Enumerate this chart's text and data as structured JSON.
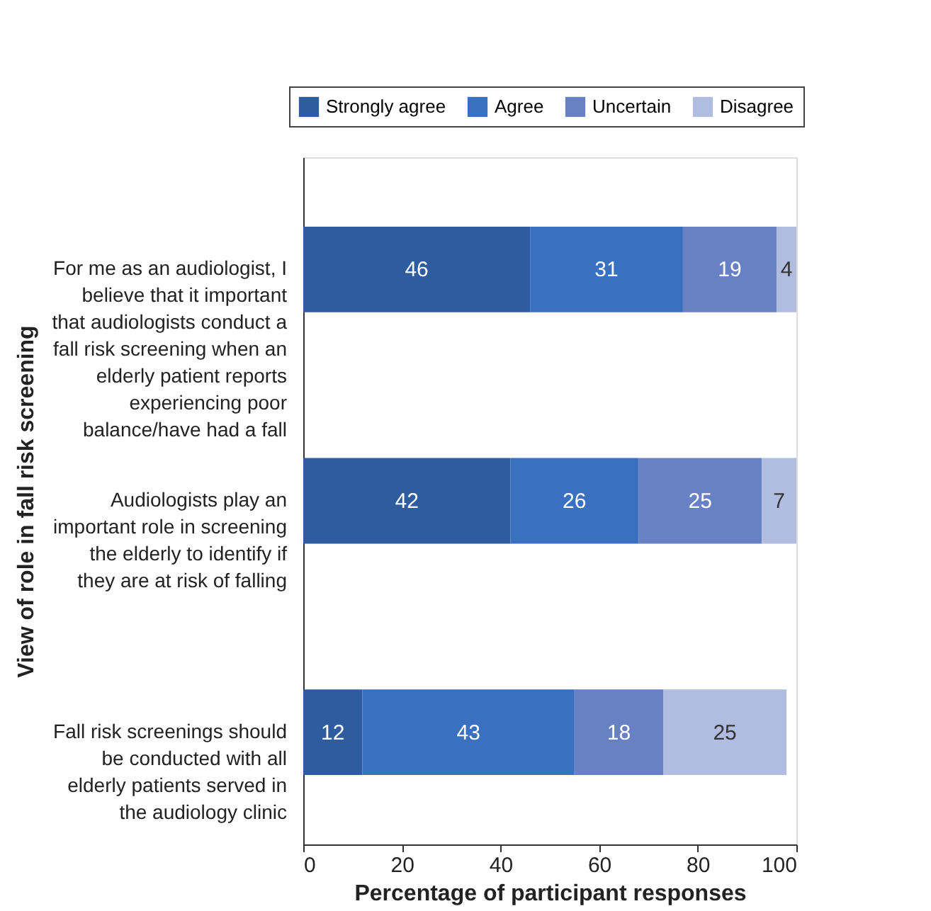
{
  "chart_data": {
    "type": "bar",
    "orientation": "horizontal",
    "stacked": true,
    "data_labels": true,
    "grid": false,
    "legend": "top right",
    "xlabel": "Percentage of participant responses",
    "ylabel": "View of role in fall risk screening",
    "categories": [
      "For me as an audiologist, I believe that it important that audiologists conduct a fall risk screening when an elderly patient reports experiencing poor balance/have had a fall",
      "Audiologists play an important role in screening the elderly to identify if they are at risk of falling",
      "Fall risk screenings should be conducted with all elderly patients served in the audiology clinic"
    ],
    "xlim": [
      0,
      100
    ],
    "xticks": [
      0,
      20,
      40,
      60,
      80,
      100
    ],
    "series": [
      {
        "name": "Strongly agree",
        "color": "#2e5c9e",
        "values": [
          46,
          42,
          12
        ]
      },
      {
        "name": "Agree",
        "color": "#3a70c0",
        "values": [
          31,
          26,
          43
        ]
      },
      {
        "name": "Uncertain",
        "color": "#6880c4",
        "values": [
          19,
          25,
          18
        ]
      },
      {
        "name": "Disagree",
        "color": "#b1bde0",
        "values": [
          4,
          7,
          25
        ]
      }
    ]
  }
}
